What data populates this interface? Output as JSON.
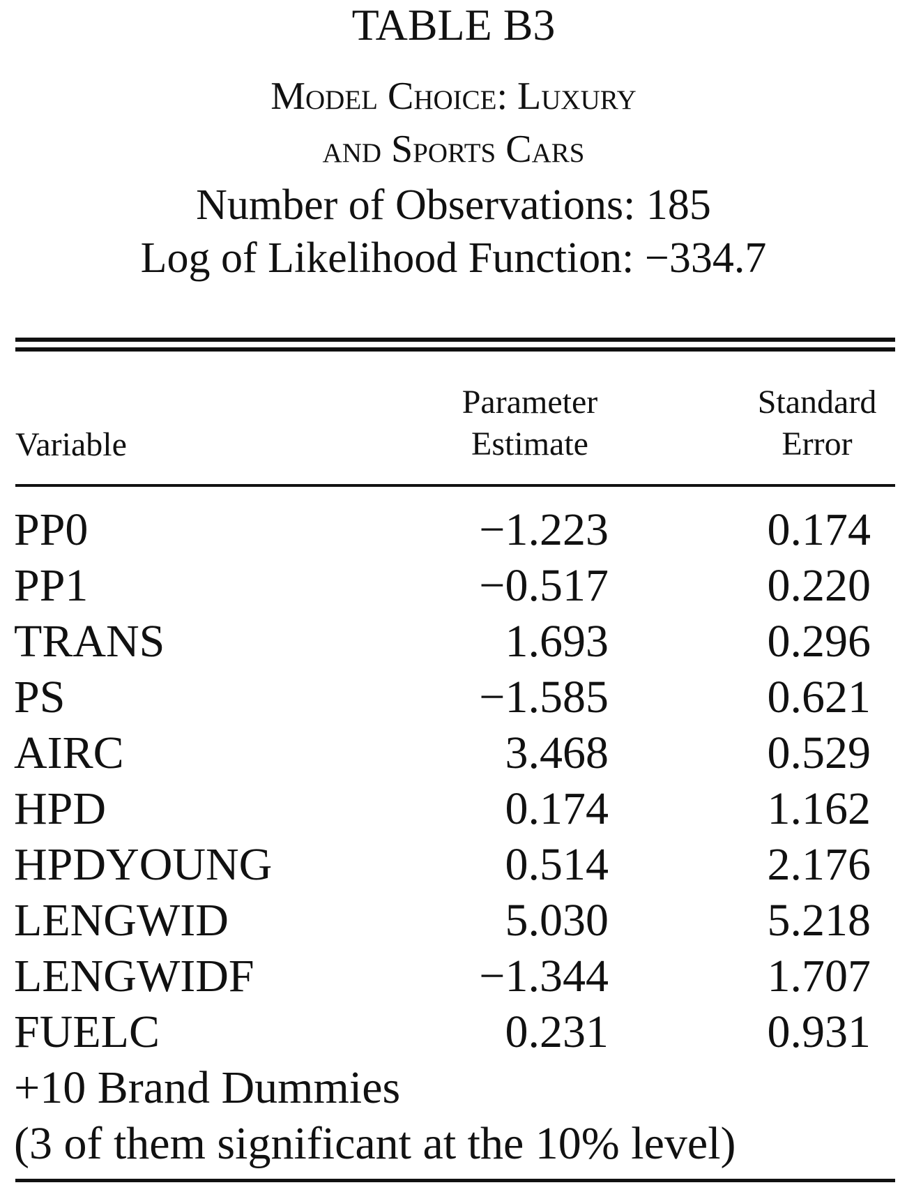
{
  "header": {
    "table_number": "TABLE B3",
    "caption_line1": "Model Choice: Luxury",
    "caption_line2": "and Sports Cars",
    "observations": "Number of Observations: 185",
    "log_likelihood": "Log of Likelihood Function: −334.7"
  },
  "columns": {
    "variable": "Variable",
    "estimate_line1": "Parameter",
    "estimate_line2": "Estimate",
    "se_line1": "Standard",
    "se_line2": "Error"
  },
  "rows": [
    {
      "variable": "PP0",
      "estimate": "−1.223",
      "se": "0.174"
    },
    {
      "variable": "PP1",
      "estimate": "−0.517",
      "se": "0.220"
    },
    {
      "variable": "TRANS",
      "estimate": "1.693",
      "se": "0.296"
    },
    {
      "variable": "PS",
      "estimate": "−1.585",
      "se": "0.621"
    },
    {
      "variable": "AIRC",
      "estimate": "3.468",
      "se": "0.529"
    },
    {
      "variable": "HPD",
      "estimate": "0.174",
      "se": "1.162"
    },
    {
      "variable": "HPDYOUNG",
      "estimate": "0.514",
      "se": "2.176"
    },
    {
      "variable": "LENGWID",
      "estimate": "5.030",
      "se": "5.218"
    },
    {
      "variable": "LENGWIDF",
      "estimate": "−1.344",
      "se": "1.707"
    },
    {
      "variable": "FUELC",
      "estimate": "0.231",
      "se": "0.931"
    }
  ],
  "notes": {
    "line1": "+10 Brand Dummies",
    "line2": "(3 of them significant at the 10% level)"
  }
}
